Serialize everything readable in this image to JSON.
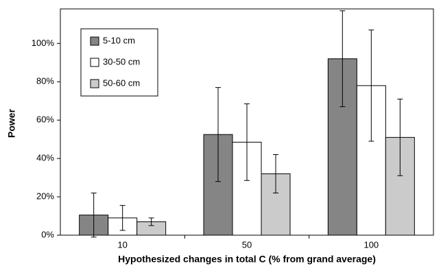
{
  "chart_data": {
    "type": "bar",
    "x_label": "Hypothesized changes in total C (% from grand average)",
    "y_label": "Power",
    "categories": [
      "10",
      "50",
      "100"
    ],
    "series": [
      {
        "name": "5-10 cm",
        "color": "#858585",
        "values": [
          10.5,
          52.5,
          92
        ],
        "errors": [
          11.5,
          24.5,
          25
        ]
      },
      {
        "name": "30-50 cm",
        "color": "#ffffff",
        "values": [
          9,
          48.5,
          78
        ],
        "errors": [
          6.5,
          20,
          29
        ]
      },
      {
        "name": "50-60 cm",
        "color": "#cbcbcb",
        "values": [
          7,
          32,
          51
        ],
        "errors": [
          2,
          10,
          20
        ]
      }
    ],
    "ylim": [
      0,
      118
    ],
    "yticks": [
      {
        "value": 0,
        "label": "0%"
      },
      {
        "value": 20,
        "label": "20%"
      },
      {
        "value": 40,
        "label": "40%"
      },
      {
        "value": 60,
        "label": "60%"
      },
      {
        "value": 80,
        "label": "80%"
      },
      {
        "value": 100,
        "label": "100%"
      }
    ],
    "legend": "upper left"
  }
}
